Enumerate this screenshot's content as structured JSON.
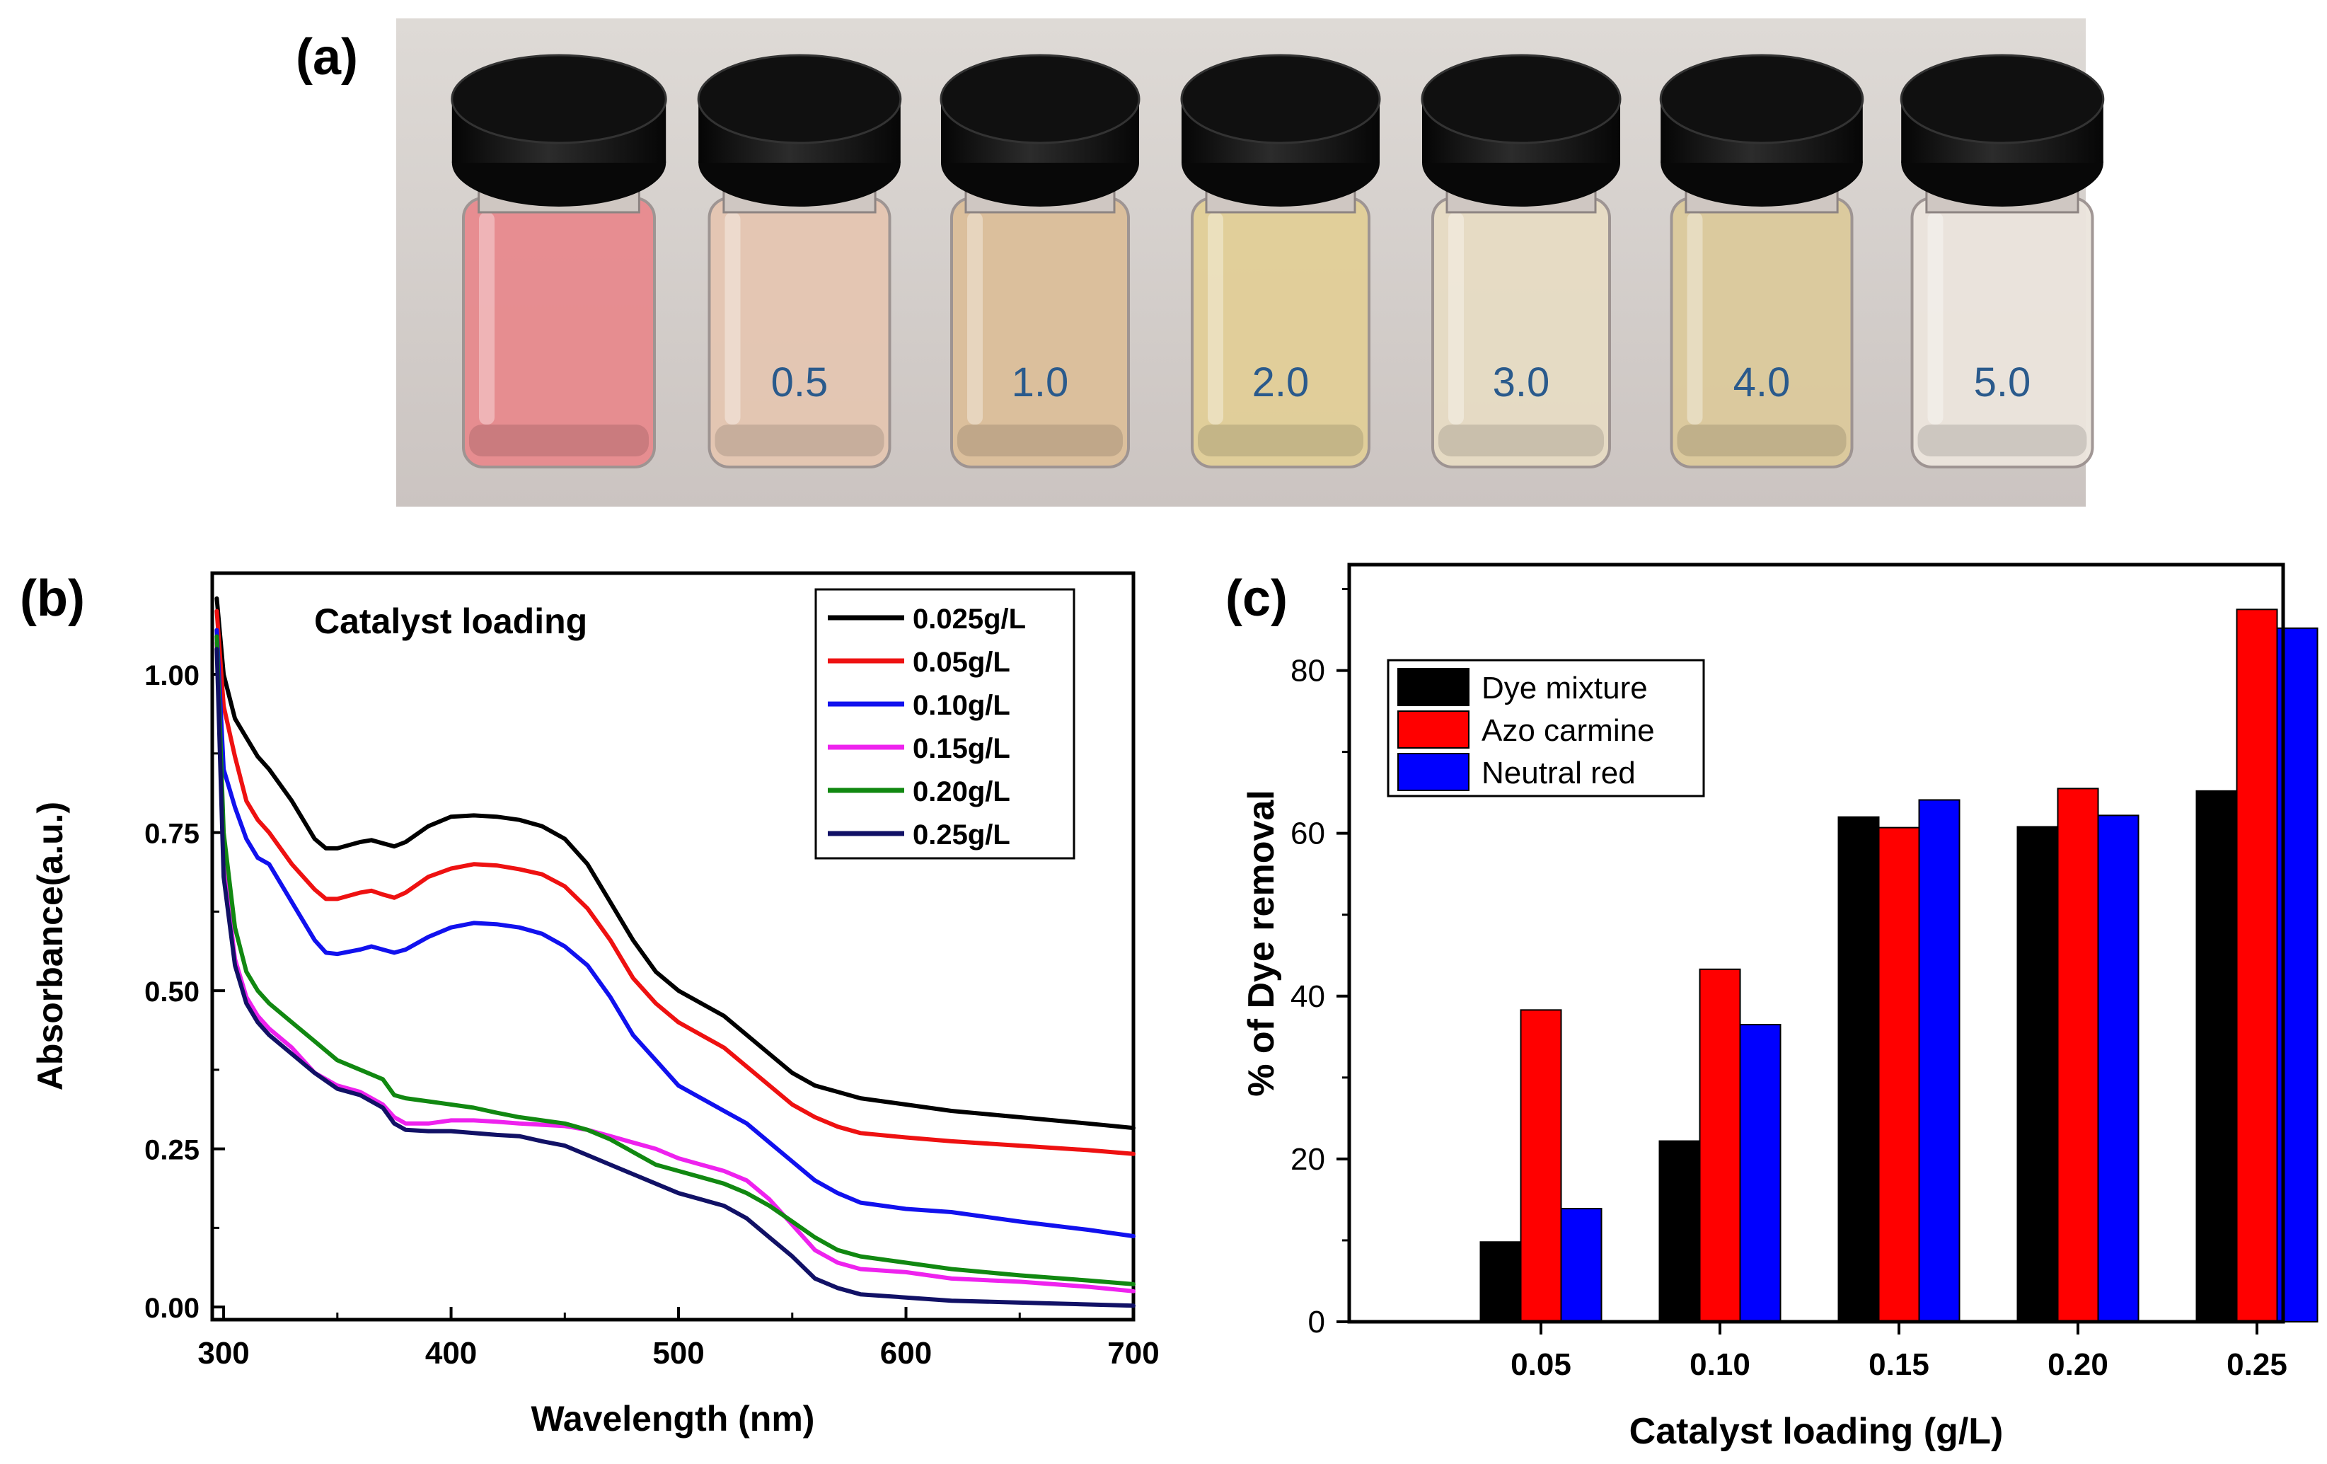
{
  "panels": {
    "a": {
      "label": "(a)"
    },
    "b": {
      "label": "(b)"
    },
    "c": {
      "label": "(c)"
    }
  },
  "photo": {
    "vials": [
      {
        "label": "",
        "liquid": "#e88a8e"
      },
      {
        "label": "0.5",
        "liquid": "#e5c6b2"
      },
      {
        "label": "1.0",
        "liquid": "#dcbf9a"
      },
      {
        "label": "2.0",
        "liquid": "#e2cf98"
      },
      {
        "label": "3.0",
        "liquid": "#e7dcc4"
      },
      {
        "label": "4.0",
        "liquid": "#dcca9c"
      },
      {
        "label": "5.0",
        "liquid": "#ece5dd"
      }
    ]
  },
  "chart_data": [
    {
      "type": "line",
      "title": "Catalyst loading",
      "xlabel": "Wavelength (nm)",
      "ylabel": "Absorbance(a.u.)",
      "xlim": [
        295,
        700
      ],
      "ylim": [
        -0.02,
        1.16
      ],
      "xticks": [
        300,
        400,
        500,
        600,
        700
      ],
      "xtick_labels": [
        "300",
        "400",
        "500",
        "600",
        "700"
      ],
      "yticks": [
        0,
        0.25,
        0.5,
        0.75,
        1.0
      ],
      "ytick_labels": [
        "0.00",
        "0.25",
        "0.50",
        "0.75",
        "1.00"
      ],
      "legend_position": "top-right",
      "series": [
        {
          "name": "0.025g/L",
          "color": "#000000",
          "x": [
            297,
            300,
            305,
            310,
            315,
            320,
            330,
            340,
            345,
            350,
            360,
            365,
            370,
            375,
            380,
            390,
            400,
            410,
            420,
            430,
            440,
            450,
            460,
            470,
            480,
            490,
            500,
            510,
            520,
            530,
            540,
            550,
            560,
            570,
            580,
            600,
            620,
            650,
            680,
            700
          ],
          "y": [
            1.12,
            1.0,
            0.93,
            0.9,
            0.87,
            0.85,
            0.8,
            0.74,
            0.725,
            0.725,
            0.735,
            0.738,
            0.733,
            0.728,
            0.735,
            0.76,
            0.775,
            0.777,
            0.775,
            0.77,
            0.76,
            0.74,
            0.7,
            0.64,
            0.58,
            0.53,
            0.5,
            0.48,
            0.46,
            0.43,
            0.4,
            0.37,
            0.35,
            0.34,
            0.33,
            0.32,
            0.31,
            0.3,
            0.29,
            0.283
          ]
        },
        {
          "name": "0.05g/L",
          "color": "#ee1111",
          "x": [
            297,
            300,
            305,
            310,
            315,
            320,
            330,
            340,
            345,
            350,
            360,
            365,
            370,
            375,
            380,
            390,
            400,
            410,
            420,
            430,
            440,
            450,
            460,
            470,
            480,
            490,
            500,
            510,
            520,
            530,
            540,
            550,
            560,
            570,
            580,
            600,
            620,
            650,
            680,
            700
          ],
          "y": [
            1.1,
            0.95,
            0.87,
            0.8,
            0.77,
            0.75,
            0.7,
            0.66,
            0.645,
            0.645,
            0.655,
            0.658,
            0.652,
            0.647,
            0.655,
            0.68,
            0.693,
            0.7,
            0.698,
            0.692,
            0.684,
            0.665,
            0.63,
            0.58,
            0.52,
            0.48,
            0.45,
            0.43,
            0.41,
            0.38,
            0.35,
            0.32,
            0.3,
            0.285,
            0.275,
            0.268,
            0.262,
            0.255,
            0.248,
            0.242
          ]
        },
        {
          "name": "0.10g/L",
          "color": "#1111ee",
          "x": [
            297,
            300,
            305,
            310,
            315,
            320,
            330,
            340,
            345,
            350,
            360,
            365,
            370,
            375,
            380,
            390,
            400,
            410,
            420,
            430,
            440,
            450,
            460,
            470,
            480,
            490,
            500,
            510,
            520,
            530,
            540,
            550,
            560,
            570,
            580,
            600,
            620,
            650,
            680,
            700
          ],
          "y": [
            1.07,
            0.85,
            0.79,
            0.74,
            0.71,
            0.7,
            0.64,
            0.58,
            0.56,
            0.558,
            0.565,
            0.57,
            0.565,
            0.56,
            0.565,
            0.585,
            0.6,
            0.607,
            0.605,
            0.6,
            0.59,
            0.57,
            0.54,
            0.49,
            0.43,
            0.39,
            0.35,
            0.33,
            0.31,
            0.29,
            0.26,
            0.23,
            0.2,
            0.18,
            0.165,
            0.155,
            0.15,
            0.135,
            0.122,
            0.112
          ]
        },
        {
          "name": "0.15g/L",
          "color": "#ee22ee",
          "x": [
            297,
            300,
            305,
            310,
            315,
            320,
            330,
            340,
            350,
            360,
            370,
            375,
            380,
            390,
            400,
            410,
            420,
            430,
            440,
            450,
            460,
            470,
            480,
            490,
            500,
            510,
            520,
            530,
            540,
            550,
            560,
            570,
            580,
            600,
            620,
            650,
            680,
            700
          ],
          "y": [
            1.05,
            0.7,
            0.55,
            0.49,
            0.46,
            0.44,
            0.41,
            0.37,
            0.35,
            0.34,
            0.32,
            0.3,
            0.29,
            0.29,
            0.295,
            0.295,
            0.293,
            0.29,
            0.288,
            0.286,
            0.28,
            0.27,
            0.26,
            0.25,
            0.235,
            0.225,
            0.215,
            0.2,
            0.17,
            0.13,
            0.09,
            0.07,
            0.06,
            0.055,
            0.045,
            0.04,
            0.032,
            0.025
          ]
        },
        {
          "name": "0.20g/L",
          "color": "#118811",
          "x": [
            297,
            300,
            305,
            310,
            315,
            320,
            330,
            340,
            350,
            360,
            370,
            375,
            380,
            390,
            400,
            410,
            420,
            430,
            440,
            450,
            460,
            470,
            480,
            490,
            500,
            510,
            520,
            530,
            540,
            550,
            560,
            570,
            580,
            600,
            620,
            650,
            680,
            700
          ],
          "y": [
            1.06,
            0.75,
            0.6,
            0.53,
            0.5,
            0.48,
            0.45,
            0.42,
            0.39,
            0.375,
            0.36,
            0.335,
            0.33,
            0.325,
            0.32,
            0.315,
            0.307,
            0.3,
            0.295,
            0.29,
            0.28,
            0.265,
            0.245,
            0.225,
            0.215,
            0.205,
            0.195,
            0.18,
            0.16,
            0.135,
            0.11,
            0.09,
            0.08,
            0.07,
            0.06,
            0.05,
            0.042,
            0.036
          ]
        },
        {
          "name": "0.25g/L",
          "color": "#111166",
          "x": [
            297,
            300,
            305,
            310,
            315,
            320,
            330,
            340,
            350,
            360,
            370,
            375,
            380,
            390,
            400,
            410,
            420,
            430,
            440,
            450,
            460,
            470,
            480,
            490,
            500,
            510,
            520,
            530,
            540,
            550,
            560,
            570,
            580,
            600,
            620,
            650,
            680,
            700
          ],
          "y": [
            1.04,
            0.68,
            0.54,
            0.48,
            0.45,
            0.43,
            0.4,
            0.37,
            0.345,
            0.335,
            0.315,
            0.29,
            0.28,
            0.278,
            0.278,
            0.275,
            0.272,
            0.27,
            0.262,
            0.255,
            0.24,
            0.225,
            0.21,
            0.195,
            0.18,
            0.17,
            0.16,
            0.14,
            0.11,
            0.08,
            0.045,
            0.03,
            0.02,
            0.015,
            0.01,
            0.007,
            0.004,
            0.002
          ]
        }
      ]
    },
    {
      "type": "bar",
      "xlabel": "Catalyst loading (g/L)",
      "ylabel": "% of Dye removal",
      "categories": [
        "0.05",
        "0.10",
        "0.15",
        "0.20",
        "0.25"
      ],
      "ylim": [
        0,
        93
      ],
      "yticks": [
        0,
        20,
        40,
        60,
        80
      ],
      "ytick_labels": [
        "0",
        "20",
        "40",
        "60",
        "80"
      ],
      "legend_position": "top-left",
      "series": [
        {
          "name": "Dye mixture",
          "color": "#000000",
          "values": [
            9.8,
            22.2,
            62.0,
            60.8,
            65.2
          ]
        },
        {
          "name": "Azo carmine",
          "color": "#ff0000",
          "values": [
            38.3,
            43.3,
            60.7,
            65.5,
            87.5
          ]
        },
        {
          "name": "Neutral red",
          "color": "#0000ff",
          "values": [
            13.9,
            36.5,
            64.1,
            62.2,
            85.2
          ]
        }
      ]
    }
  ]
}
